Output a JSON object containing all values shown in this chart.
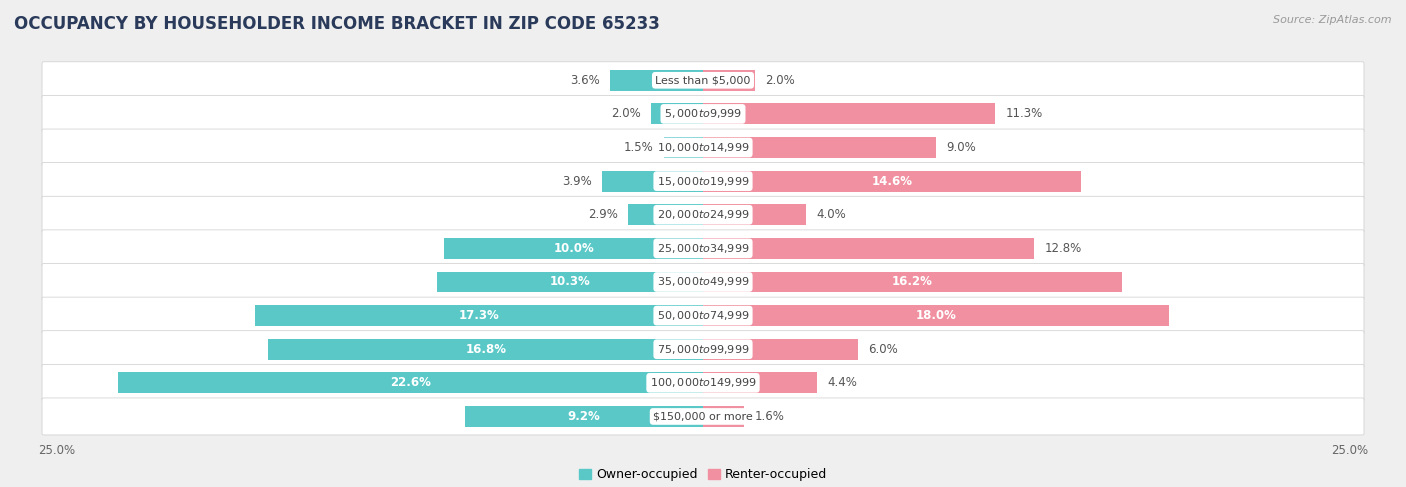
{
  "title": "OCCUPANCY BY HOUSEHOLDER INCOME BRACKET IN ZIP CODE 65233",
  "source": "Source: ZipAtlas.com",
  "categories": [
    "Less than $5,000",
    "$5,000 to $9,999",
    "$10,000 to $14,999",
    "$15,000 to $19,999",
    "$20,000 to $24,999",
    "$25,000 to $34,999",
    "$35,000 to $49,999",
    "$50,000 to $74,999",
    "$75,000 to $99,999",
    "$100,000 to $149,999",
    "$150,000 or more"
  ],
  "owner_values": [
    3.6,
    2.0,
    1.5,
    3.9,
    2.9,
    10.0,
    10.3,
    17.3,
    16.8,
    22.6,
    9.2
  ],
  "renter_values": [
    2.0,
    11.3,
    9.0,
    14.6,
    4.0,
    12.8,
    16.2,
    18.0,
    6.0,
    4.4,
    1.6
  ],
  "owner_color": "#5BC8C8",
  "renter_color": "#F090A0",
  "background_color": "#efefef",
  "bar_background_color": "#ffffff",
  "xlim": 25.0,
  "bar_height": 0.62,
  "title_fontsize": 12,
  "label_fontsize": 8.5,
  "category_fontsize": 8,
  "legend_fontsize": 9,
  "source_fontsize": 8,
  "owner_inside_threshold": 9.0,
  "renter_inside_threshold": 14.0
}
